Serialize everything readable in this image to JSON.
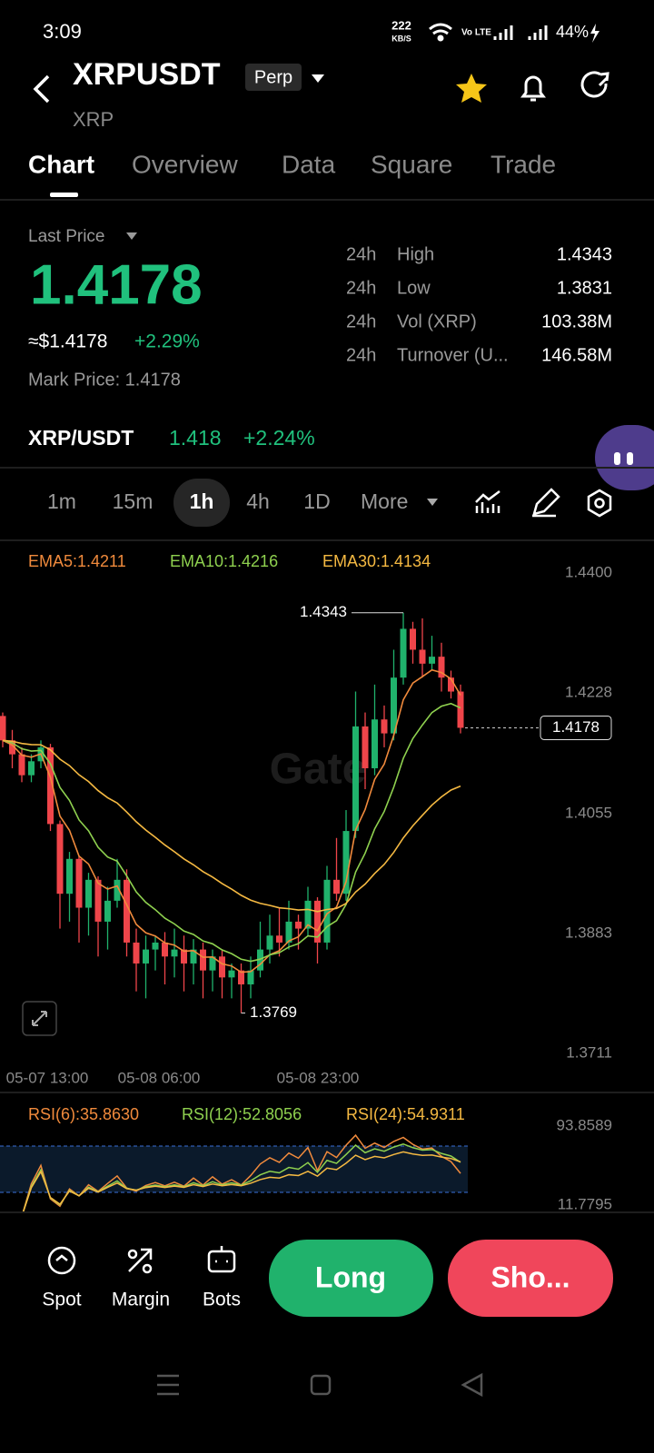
{
  "status_bar": {
    "time": "3:09",
    "net_speed": "222",
    "net_unit": "KB/S",
    "battery": "44%"
  },
  "header": {
    "symbol": "XRPUSDT",
    "badge": "Perp",
    "base": "XRP"
  },
  "tabs": [
    "Chart",
    "Overview",
    "Data",
    "Square",
    "Trade"
  ],
  "price": {
    "label": "Last Price",
    "last": "1.4178",
    "usd": "≈$1.4178",
    "change": "+2.29%",
    "mark": "Mark Price: 1.4178"
  },
  "stats": [
    {
      "period": "24h",
      "name": "High",
      "value": "1.4343"
    },
    {
      "period": "24h",
      "name": "Low",
      "value": "1.3831"
    },
    {
      "period": "24h",
      "name": "Vol (XRP)",
      "value": "103.38M"
    },
    {
      "period": "24h",
      "name": "Turnover (U...",
      "value": "146.58M"
    }
  ],
  "pair": {
    "name": "XRP/USDT",
    "price": "1.418",
    "change": "+2.24%"
  },
  "intervals": [
    "1m",
    "15m",
    "1h",
    "4h",
    "1D",
    "More"
  ],
  "chart_data": {
    "type": "candlestick",
    "ema_labels": [
      "EMA5:1.4211",
      "EMA10:1.4216",
      "EMA30:1.4134"
    ],
    "ylim": [
      1.3711,
      1.44
    ],
    "yticks": [
      {
        "value": 1.44,
        "label": "1.4400"
      },
      1.4228,
      1.4055,
      1.3883,
      1.3711
    ],
    "x_labels": [
      "05-07 13:00",
      "05-08 06:00",
      "05-08 23:00"
    ],
    "high_label": "1.4343",
    "low_label": "1.3769",
    "last_label": "1.4178",
    "open": [
      1.4195,
      1.416,
      1.414,
      1.411,
      1.413,
      1.415,
      1.404,
      1.394,
      1.399,
      1.392,
      1.396,
      1.39,
      1.393,
      1.396,
      1.387,
      1.384,
      1.386,
      1.387,
      1.385,
      1.386,
      1.384,
      1.386,
      1.383,
      1.385,
      1.382,
      1.383,
      1.381,
      1.383,
      1.386,
      1.388,
      1.387,
      1.39,
      1.389,
      1.393,
      1.387,
      1.396,
      1.394,
      1.403,
      1.418,
      1.412,
      1.419,
      1.417,
      1.425,
      1.432,
      1.429,
      1.427,
      1.428,
      1.425,
      1.423
    ],
    "high": [
      1.42,
      1.4175,
      1.415,
      1.414,
      1.416,
      1.4155,
      1.4045,
      1.4,
      1.3995,
      1.397,
      1.3965,
      1.395,
      1.399,
      1.3975,
      1.389,
      1.388,
      1.388,
      1.3885,
      1.389,
      1.388,
      1.3875,
      1.387,
      1.386,
      1.386,
      1.384,
      1.384,
      1.385,
      1.39,
      1.391,
      1.392,
      1.393,
      1.391,
      1.395,
      1.3935,
      1.398,
      1.402,
      1.406,
      1.423,
      1.42,
      1.424,
      1.421,
      1.429,
      1.4343,
      1.433,
      1.4335,
      1.431,
      1.43,
      1.426,
      1.424
    ],
    "low": [
      1.415,
      1.412,
      1.41,
      1.41,
      1.412,
      1.403,
      1.389,
      1.39,
      1.387,
      1.388,
      1.385,
      1.386,
      1.392,
      1.385,
      1.38,
      1.379,
      1.383,
      1.381,
      1.382,
      1.38,
      1.381,
      1.379,
      1.38,
      1.379,
      1.379,
      1.3769,
      1.379,
      1.382,
      1.384,
      1.385,
      1.386,
      1.386,
      1.388,
      1.384,
      1.386,
      1.393,
      1.393,
      1.402,
      1.409,
      1.411,
      1.415,
      1.416,
      1.424,
      1.427,
      1.425,
      1.426,
      1.423,
      1.422,
      1.417
    ],
    "close": [
      1.416,
      1.414,
      1.411,
      1.413,
      1.415,
      1.404,
      1.394,
      1.399,
      1.392,
      1.396,
      1.39,
      1.393,
      1.396,
      1.387,
      1.384,
      1.386,
      1.387,
      1.385,
      1.386,
      1.384,
      1.386,
      1.383,
      1.385,
      1.382,
      1.383,
      1.381,
      1.383,
      1.386,
      1.388,
      1.387,
      1.39,
      1.389,
      1.393,
      1.387,
      1.396,
      1.394,
      1.403,
      1.418,
      1.412,
      1.419,
      1.417,
      1.425,
      1.432,
      1.429,
      1.427,
      1.428,
      1.425,
      1.423,
      1.4178
    ],
    "rsi_labels": [
      "RSI(6):35.8630",
      "RSI(12):52.8056",
      "RSI(24):54.9311"
    ],
    "rsi_ylim": [
      11.7795,
      93.8589
    ],
    "rsi_yticks": [
      93.8589,
      11.7795
    ]
  },
  "actions": [
    "Spot",
    "Margin",
    "Bots"
  ],
  "buttons": [
    "Long",
    "Sho..."
  ]
}
